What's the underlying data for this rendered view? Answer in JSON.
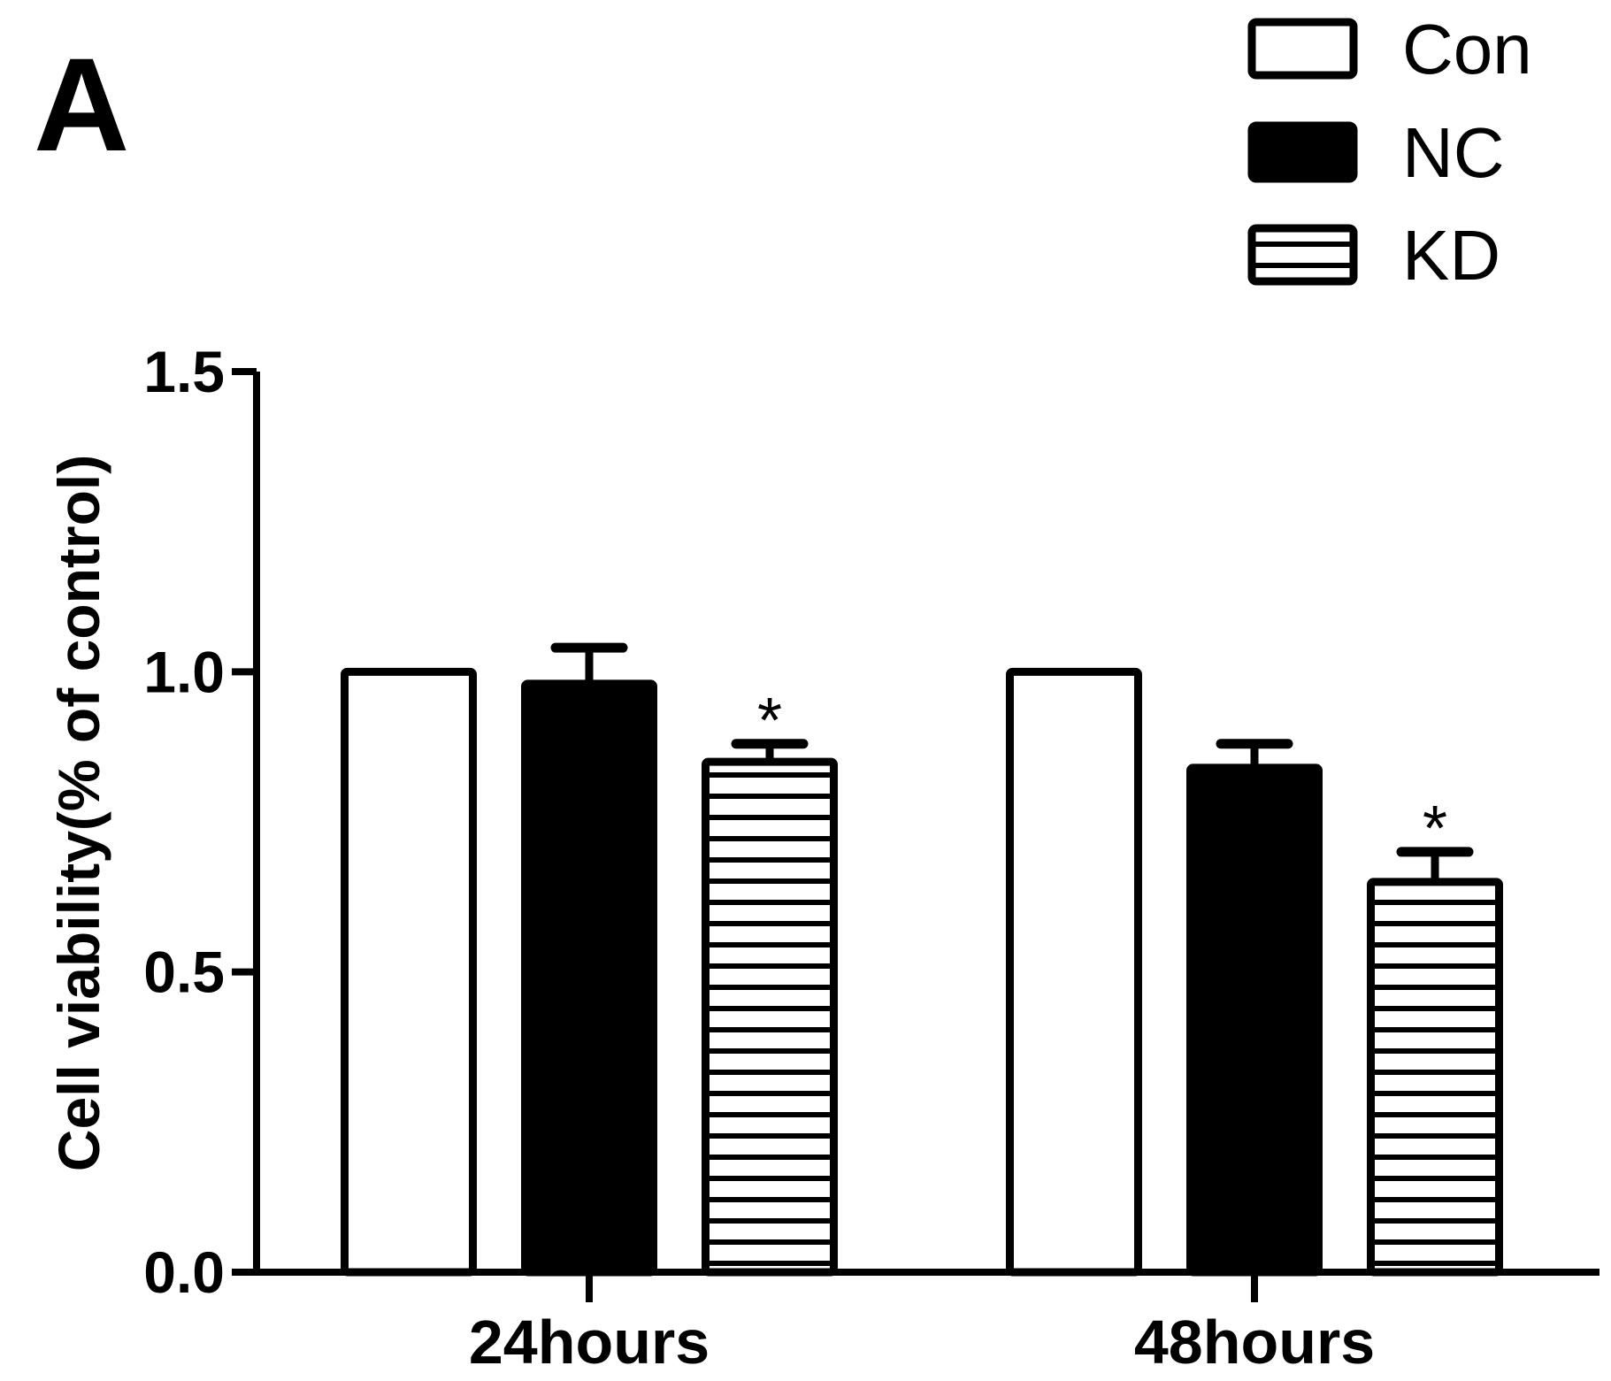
{
  "panel_label": "A",
  "colors": {
    "ink": "#000000",
    "background": "#ffffff"
  },
  "chart_data": {
    "type": "bar",
    "title": "",
    "xlabel": "",
    "ylabel": "Cell viability(%  of control)",
    "ylim": [
      0,
      1.5
    ],
    "yticks": [
      "0.0",
      "0.5",
      "1.0",
      "1.5"
    ],
    "ytick_values": [
      0,
      0.5,
      1.0,
      1.5
    ],
    "grid": false,
    "legend_position": "top-right",
    "categories": [
      "24hours",
      "48hours"
    ],
    "series": [
      {
        "name": "Con",
        "fill": "white",
        "values": [
          1.0,
          1.0
        ],
        "errors": [
          0,
          0
        ],
        "significance": [
          "",
          ""
        ]
      },
      {
        "name": "NC",
        "fill": "black",
        "values": [
          0.98,
          0.84
        ],
        "errors": [
          0.06,
          0.04
        ],
        "significance": [
          "",
          ""
        ]
      },
      {
        "name": "KD",
        "fill": "hatched",
        "values": [
          0.85,
          0.65
        ],
        "errors": [
          0.03,
          0.05
        ],
        "significance": [
          "*",
          "*"
        ]
      }
    ]
  }
}
